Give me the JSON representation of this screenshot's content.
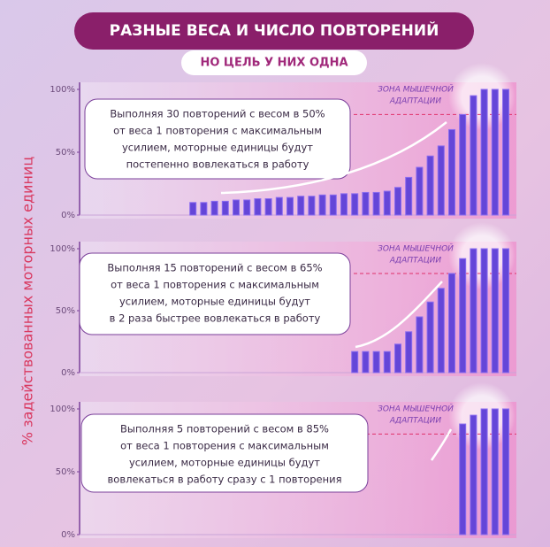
{
  "header": {
    "title": "РАЗНЫЕ ВЕСА И ЧИСЛО ПОВТОРЕНИЙ",
    "subtitle": "НО ЦЕЛЬ У НИХ ОДНА"
  },
  "y_axis_label": "% задействованных моторных единиц",
  "chart_data": [
    {
      "type": "bar",
      "color": "#6446d8",
      "ylim": [
        0,
        100
      ],
      "yticks": [
        {
          "value": 0,
          "label": "0%"
        },
        {
          "value": 50,
          "label": "50%"
        },
        {
          "value": 100,
          "label": "100%"
        }
      ],
      "zone_label": [
        "ЗОНА МЫШЕЧНОЙ",
        "АДАПТАЦИИ"
      ],
      "zone_threshold": 80,
      "annotation": [
        "Выполняя 30 повторений с весом в 50%",
        "от веса 1 повторения с максимальным",
        "усилием, моторные единицы будут",
        "постепенно вовлекаться в работу"
      ],
      "values": [
        10,
        10,
        11,
        11,
        12,
        12,
        13,
        13,
        14,
        14,
        15,
        15,
        16,
        16,
        17,
        17,
        18,
        18,
        19,
        22,
        30,
        38,
        47,
        55,
        68,
        80,
        95,
        100,
        100,
        100
      ]
    },
    {
      "type": "bar",
      "color": "#6446d8",
      "ylim": [
        0,
        100
      ],
      "yticks": [
        {
          "value": 0,
          "label": "0%"
        },
        {
          "value": 50,
          "label": "50%"
        },
        {
          "value": 100,
          "label": "100%"
        }
      ],
      "zone_label": [
        "ЗОНА МЫШЕЧНОЙ",
        "АДАПТАЦИИ"
      ],
      "zone_threshold": 80,
      "annotation": [
        "Выполняя 15 повторений с весом в 65%",
        "от веса 1 повторения с максимальным",
        "усилием, моторные единицы будут",
        "в 2 раза быстрее вовлекаться в работу"
      ],
      "values": [
        17,
        17,
        17,
        17,
        23,
        33,
        45,
        57,
        68,
        80,
        92,
        100,
        100,
        100,
        100
      ]
    },
    {
      "type": "bar",
      "color": "#6446d8",
      "ylim": [
        0,
        100
      ],
      "yticks": [
        {
          "value": 0,
          "label": "0%"
        },
        {
          "value": 50,
          "label": "50%"
        },
        {
          "value": 100,
          "label": "100%"
        }
      ],
      "zone_label": [
        "ЗОНА МЫШЕЧНОЙ",
        "АДАПТАЦИИ"
      ],
      "zone_threshold": 80,
      "annotation": [
        "Выполняя 5 повторений с весом в 85%",
        "от веса 1 повторения с максимальным",
        "усилием, моторные единицы будут",
        "вовлекаться в работу сразу с 1 повторения"
      ],
      "values": [
        88,
        95,
        100,
        100,
        100
      ]
    }
  ]
}
